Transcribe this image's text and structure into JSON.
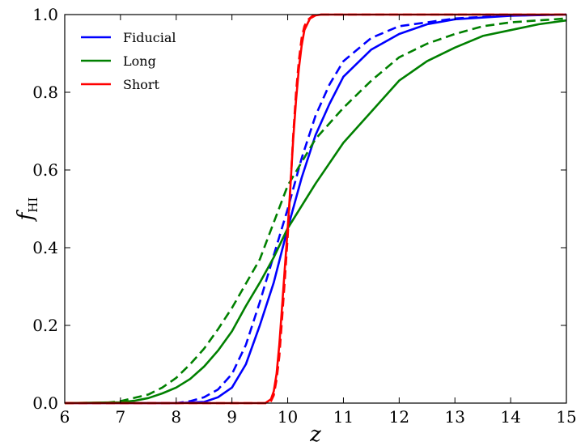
{
  "chart_data": {
    "type": "line",
    "title": "",
    "xlabel": "z",
    "ylabel_main": "f",
    "ylabel_sub": "HI",
    "xlim": [
      6,
      15
    ],
    "ylim": [
      0.0,
      1.0
    ],
    "xticks": [
      "6",
      "7",
      "8",
      "9",
      "10",
      "11",
      "12",
      "13",
      "14",
      "15"
    ],
    "yticks": [
      "0.0",
      "0.2",
      "0.4",
      "0.6",
      "0.8",
      "1.0"
    ],
    "grid": false,
    "legend_position": "top-left",
    "legend": [
      {
        "name": "Fiducial",
        "color": "#0000ff"
      },
      {
        "name": "Long",
        "color": "#008000"
      },
      {
        "name": "Short",
        "color": "#ff0000"
      }
    ],
    "series": [
      {
        "model": "Fiducial",
        "color": "#0000ff",
        "style": "solid",
        "x": [
          6,
          8.0,
          8.5,
          8.75,
          9.0,
          9.25,
          9.5,
          9.75,
          10.0,
          10.25,
          10.5,
          10.75,
          11.0,
          11.5,
          12.0,
          12.5,
          13.0,
          14.0,
          15.0
        ],
        "y": [
          0.0,
          0.0,
          0.003,
          0.015,
          0.04,
          0.1,
          0.2,
          0.31,
          0.45,
          0.58,
          0.69,
          0.77,
          0.84,
          0.91,
          0.95,
          0.975,
          0.988,
          0.997,
          1.0
        ]
      },
      {
        "model": "Fiducial",
        "color": "#0000ff",
        "style": "dashed",
        "x": [
          6,
          8.0,
          8.25,
          8.5,
          8.75,
          9.0,
          9.25,
          9.5,
          9.75,
          10.0,
          10.25,
          10.5,
          10.75,
          11.0,
          11.5,
          12.0,
          13.0,
          14.0,
          15.0
        ],
        "y": [
          0.0,
          0.0,
          0.005,
          0.015,
          0.035,
          0.075,
          0.15,
          0.26,
          0.38,
          0.5,
          0.63,
          0.74,
          0.82,
          0.88,
          0.94,
          0.97,
          0.99,
          0.998,
          1.0
        ]
      },
      {
        "model": "Long",
        "color": "#008000",
        "style": "solid",
        "x": [
          6,
          7.0,
          7.25,
          7.5,
          7.75,
          8.0,
          8.25,
          8.5,
          8.75,
          9.0,
          9.25,
          9.5,
          9.75,
          10.0,
          10.5,
          11.0,
          11.5,
          12.0,
          12.5,
          13.0,
          13.5,
          14.0,
          14.5,
          15.0
        ],
        "y": [
          0.0,
          0.002,
          0.006,
          0.013,
          0.025,
          0.04,
          0.062,
          0.094,
          0.135,
          0.185,
          0.25,
          0.31,
          0.375,
          0.45,
          0.565,
          0.67,
          0.75,
          0.83,
          0.88,
          0.915,
          0.945,
          0.96,
          0.975,
          0.985
        ]
      },
      {
        "model": "Long",
        "color": "#008000",
        "style": "dashed",
        "x": [
          6,
          6.75,
          7.0,
          7.5,
          7.75,
          8.0,
          8.25,
          8.5,
          8.75,
          9.0,
          9.5,
          10.0,
          10.5,
          11.0,
          11.5,
          12.0,
          12.5,
          13.0,
          13.5,
          14.0,
          15.0
        ],
        "y": [
          0.0,
          0.001,
          0.005,
          0.022,
          0.04,
          0.065,
          0.1,
          0.14,
          0.19,
          0.245,
          0.37,
          0.56,
          0.68,
          0.76,
          0.83,
          0.89,
          0.925,
          0.95,
          0.97,
          0.98,
          0.99
        ]
      },
      {
        "model": "Short",
        "color": "#ff0000",
        "style": "solid",
        "x": [
          6,
          9.6,
          9.7,
          9.75,
          9.8,
          9.85,
          9.9,
          9.95,
          10.0,
          10.05,
          10.1,
          10.15,
          10.2,
          10.25,
          10.3,
          10.4,
          10.5,
          10.6,
          11.0,
          15.0
        ],
        "y": [
          0.0,
          0.0,
          0.01,
          0.03,
          0.075,
          0.15,
          0.25,
          0.35,
          0.45,
          0.56,
          0.68,
          0.78,
          0.86,
          0.92,
          0.96,
          0.99,
          0.998,
          1.0,
          1.0,
          1.0
        ]
      },
      {
        "model": "Short",
        "color": "#ff0000",
        "style": "dashed",
        "x": [
          6,
          9.65,
          9.7,
          9.75,
          9.8,
          9.85,
          9.9,
          9.95,
          10.0,
          10.05,
          10.1,
          10.15,
          10.2,
          10.25,
          10.3,
          10.35,
          10.45,
          10.55,
          11.0,
          15.0
        ],
        "y": [
          0.0,
          0.0,
          0.005,
          0.02,
          0.06,
          0.12,
          0.22,
          0.32,
          0.43,
          0.56,
          0.69,
          0.8,
          0.88,
          0.94,
          0.97,
          0.985,
          0.997,
          1.0,
          1.0,
          1.0
        ]
      }
    ]
  }
}
